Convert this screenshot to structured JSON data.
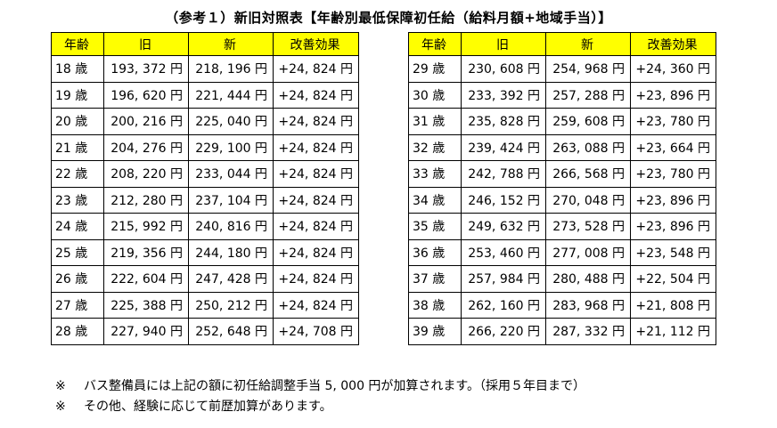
{
  "title": "（参考１）新旧対照表【年齢別最低保障初任給（給料月額+地域手当）】",
  "headers": {
    "age": "年齢",
    "old": "旧",
    "new": "新",
    "diff": "改善効果"
  },
  "left_rows": [
    {
      "age": "18 歳",
      "old": "193, 372 円",
      "new": "218, 196 円",
      "diff": "+24, 824 円"
    },
    {
      "age": "19 歳",
      "old": "196, 620 円",
      "new": "221, 444 円",
      "diff": "+24, 824 円"
    },
    {
      "age": "20 歳",
      "old": "200, 216 円",
      "new": "225, 040 円",
      "diff": "+24, 824 円"
    },
    {
      "age": "21 歳",
      "old": "204, 276 円",
      "new": "229, 100 円",
      "diff": "+24, 824 円"
    },
    {
      "age": "22 歳",
      "old": "208, 220 円",
      "new": "233, 044 円",
      "diff": "+24, 824 円"
    },
    {
      "age": "23 歳",
      "old": "212, 280 円",
      "new": "237, 104 円",
      "diff": "+24, 824 円"
    },
    {
      "age": "24 歳",
      "old": "215, 992 円",
      "new": "240, 816 円",
      "diff": "+24, 824 円"
    },
    {
      "age": "25 歳",
      "old": "219, 356 円",
      "new": "244, 180 円",
      "diff": "+24, 824 円"
    },
    {
      "age": "26 歳",
      "old": "222, 604 円",
      "new": "247, 428 円",
      "diff": "+24, 824 円"
    },
    {
      "age": "27 歳",
      "old": "225, 388 円",
      "new": "250, 212 円",
      "diff": "+24, 824 円"
    },
    {
      "age": "28 歳",
      "old": "227, 940 円",
      "new": "252, 648 円",
      "diff": "+24, 708 円"
    }
  ],
  "right_rows": [
    {
      "age": "29 歳",
      "old": "230, 608 円",
      "new": "254, 968 円",
      "diff": "+24, 360 円"
    },
    {
      "age": "30 歳",
      "old": "233, 392 円",
      "new": "257, 288 円",
      "diff": "+23, 896 円"
    },
    {
      "age": "31 歳",
      "old": "235, 828 円",
      "new": "259, 608 円",
      "diff": "+23, 780 円"
    },
    {
      "age": "32 歳",
      "old": "239, 424 円",
      "new": "263, 088 円",
      "diff": "+23, 664 円"
    },
    {
      "age": "33 歳",
      "old": "242, 788 円",
      "new": "266, 568 円",
      "diff": "+23, 780 円"
    },
    {
      "age": "34 歳",
      "old": "246, 152 円",
      "new": "270, 048 円",
      "diff": "+23, 896 円"
    },
    {
      "age": "35 歳",
      "old": "249, 632 円",
      "new": "273, 528 円",
      "diff": "+23, 896 円"
    },
    {
      "age": "36 歳",
      "old": "253, 460 円",
      "new": "277, 008 円",
      "diff": "+23, 548 円"
    },
    {
      "age": "37 歳",
      "old": "257, 984 円",
      "new": "280, 488 円",
      "diff": "+22, 504 円"
    },
    {
      "age": "38 歳",
      "old": "262, 160 円",
      "new": "283, 968 円",
      "diff": "+21, 808 円"
    },
    {
      "age": "39 歳",
      "old": "266, 220 円",
      "new": "287, 332 円",
      "diff": "+21, 112 円"
    }
  ],
  "notes": [
    {
      "mark": "※",
      "text": "バス整備員には上記の額に初任給調整手当 5, 000 円が加算されます。（採用５年目まで）"
    },
    {
      "mark": "※",
      "text": "その他、経験に応じて前歴加算があります。"
    }
  ]
}
